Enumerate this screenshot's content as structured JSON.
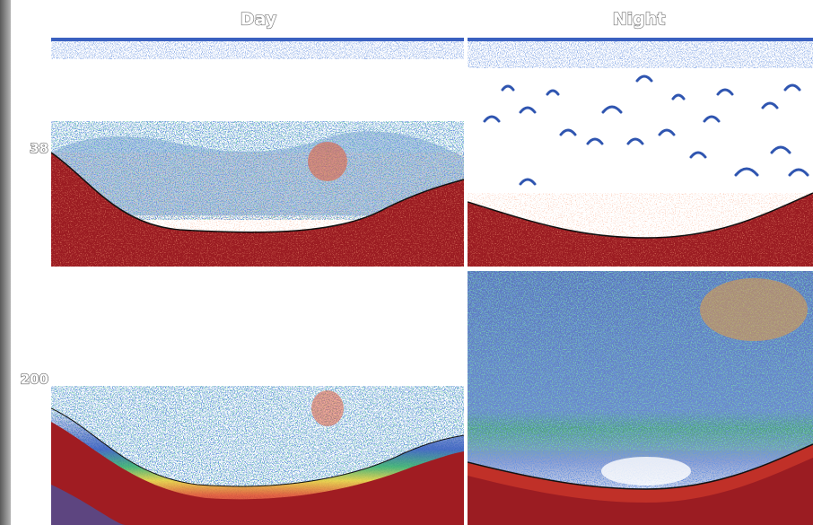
{
  "columns": [
    "Day",
    "Night"
  ],
  "rows": [
    "38",
    "200"
  ]
}
